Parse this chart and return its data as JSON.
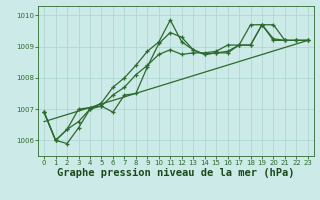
{
  "title": "Graphe pression niveau de la mer (hPa)",
  "background_color": "#cceae7",
  "grid_color": "#aad4d0",
  "line_color": "#2d6a2d",
  "xlim": [
    -0.5,
    23.5
  ],
  "ylim": [
    1005.5,
    1010.3
  ],
  "yticks": [
    1006,
    1007,
    1008,
    1009,
    1010
  ],
  "xticks": [
    0,
    1,
    2,
    3,
    4,
    5,
    6,
    7,
    8,
    9,
    10,
    11,
    12,
    13,
    14,
    15,
    16,
    17,
    18,
    19,
    20,
    21,
    22,
    23
  ],
  "series1": {
    "x": [
      0,
      1,
      2,
      3,
      4,
      5,
      6,
      7,
      8,
      9,
      10,
      11,
      12,
      13,
      14,
      15,
      16,
      17,
      18,
      19,
      20,
      21,
      22,
      23
    ],
    "y": [
      1006.9,
      1006.0,
      1005.9,
      1006.4,
      1007.0,
      1007.1,
      1006.9,
      1007.45,
      1007.5,
      1008.35,
      1009.1,
      1009.45,
      1009.3,
      1008.9,
      1008.75,
      1008.8,
      1008.85,
      1009.05,
      1009.05,
      1009.7,
      1009.7,
      1009.2,
      1009.2,
      1009.2
    ]
  },
  "series2": {
    "x": [
      0,
      1,
      2,
      3,
      4,
      5,
      6,
      7,
      8,
      9,
      10,
      11,
      12,
      13,
      14,
      15,
      16,
      17,
      18,
      19,
      20,
      21,
      22,
      23
    ],
    "y": [
      1006.9,
      1006.0,
      1006.35,
      1006.6,
      1007.0,
      1007.2,
      1007.7,
      1008.0,
      1008.4,
      1008.85,
      1009.15,
      1009.85,
      1009.15,
      1008.9,
      1008.75,
      1008.8,
      1008.8,
      1009.05,
      1009.05,
      1009.7,
      1009.25,
      1009.2,
      1009.2,
      1009.2
    ]
  },
  "series3": {
    "x": [
      0,
      1,
      2,
      3,
      4,
      5,
      6,
      7,
      8,
      9,
      10,
      11,
      12,
      13,
      14,
      15,
      16,
      17,
      18,
      19,
      20,
      21,
      22,
      23
    ],
    "y": [
      1006.9,
      1006.0,
      1006.35,
      1007.0,
      1007.05,
      1007.1,
      1007.45,
      1007.7,
      1008.1,
      1008.4,
      1008.75,
      1008.9,
      1008.75,
      1008.8,
      1008.8,
      1008.85,
      1009.05,
      1009.05,
      1009.7,
      1009.7,
      1009.2,
      1009.2,
      1009.2,
      1009.2
    ]
  },
  "series4": {
    "x": [
      0,
      23
    ],
    "y": [
      1006.6,
      1009.2
    ]
  },
  "title_fontsize": 7.5,
  "tick_fontsize": 5.0
}
